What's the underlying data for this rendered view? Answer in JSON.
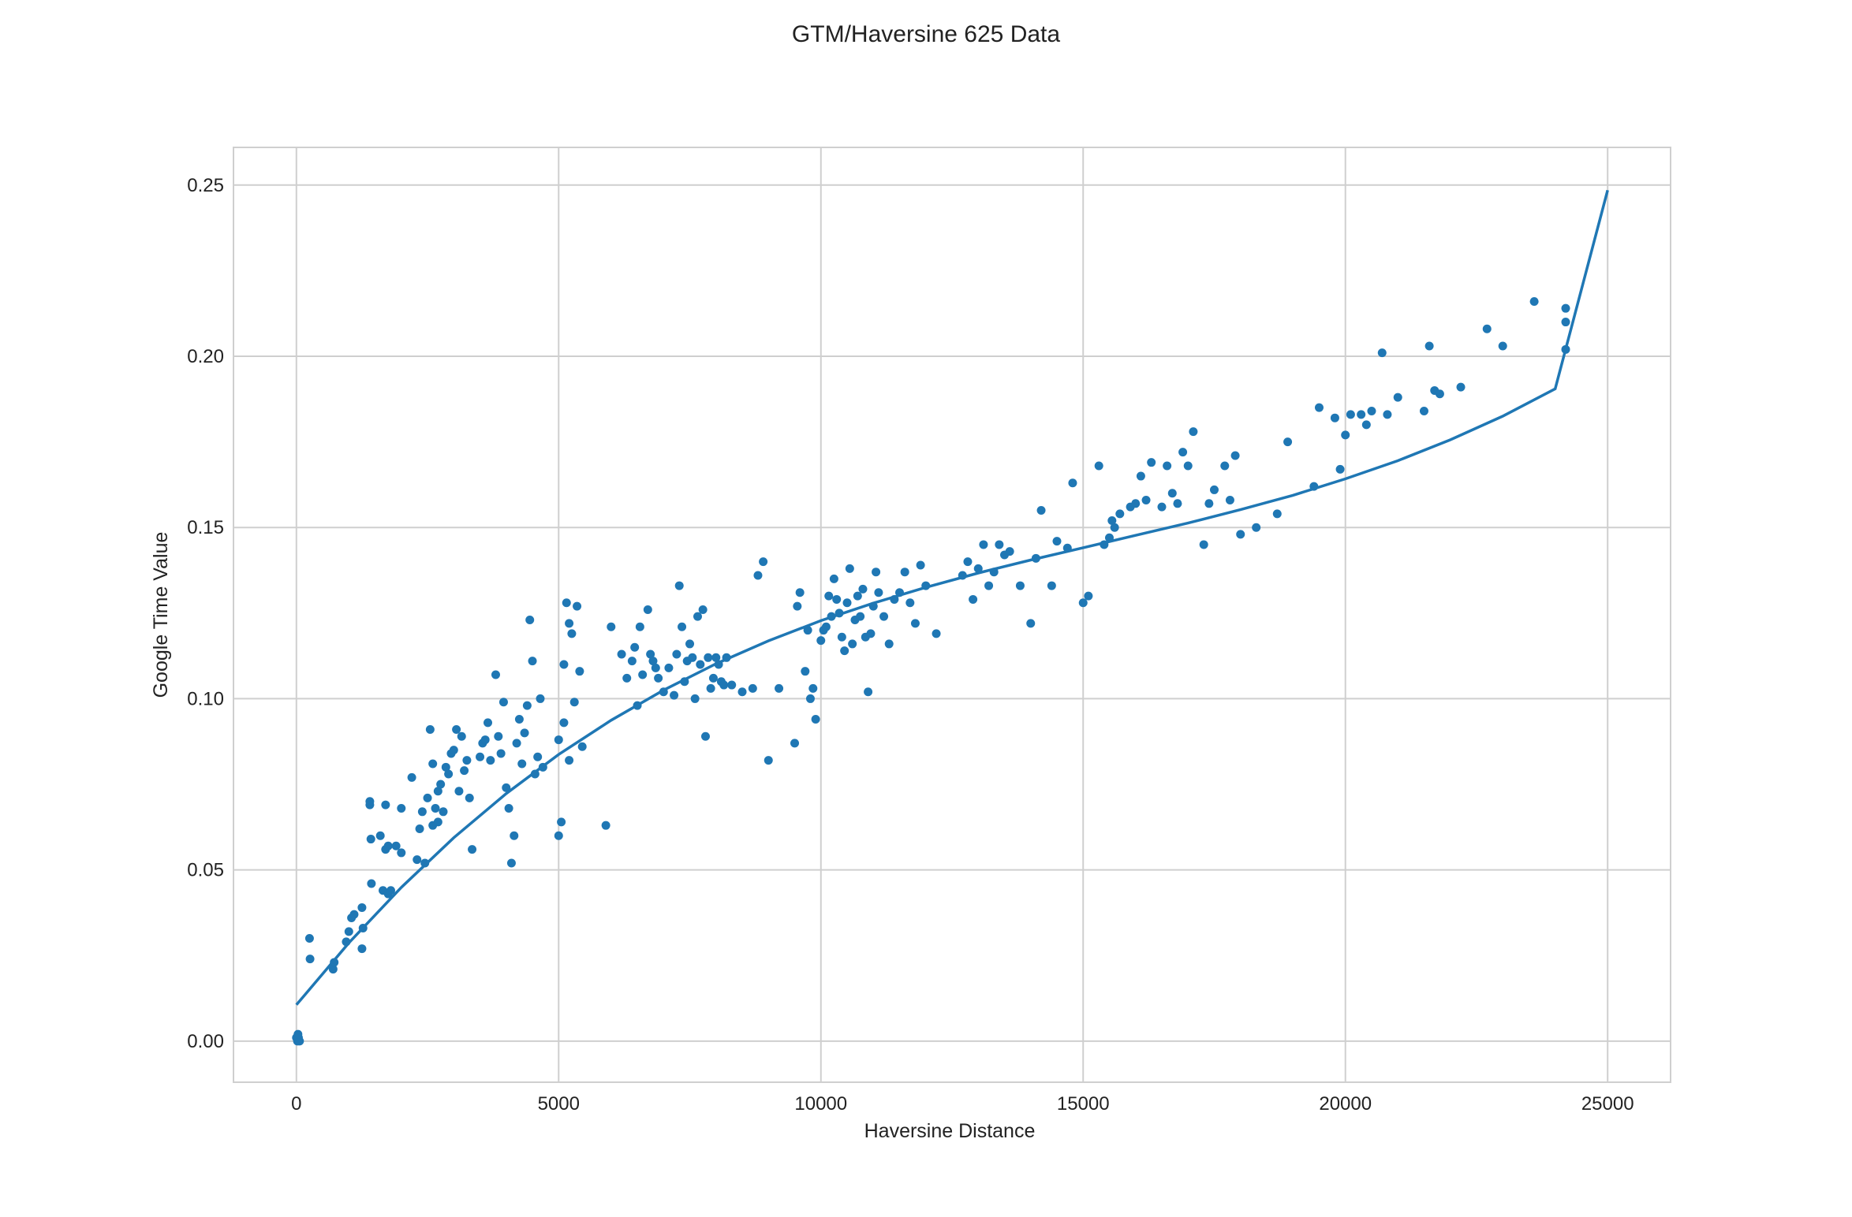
{
  "chart_data": {
    "type": "scatter",
    "title": "GTM/Haversine 625 Data",
    "xlabel": "Haversine Distance",
    "ylabel": "Google Time Value",
    "xlim": [
      -1200,
      26200
    ],
    "ylim": [
      -0.012,
      0.261
    ],
    "xticks": [
      0,
      5000,
      10000,
      15000,
      20000,
      25000
    ],
    "yticks": [
      0.0,
      0.05,
      0.1,
      0.15,
      0.2,
      0.25
    ],
    "xtick_labels": [
      "0",
      "5000",
      "10000",
      "15000",
      "20000",
      "25000"
    ],
    "ytick_labels": [
      "0.00",
      "0.05",
      "0.10",
      "0.15",
      "0.20",
      "0.25"
    ],
    "grid": true,
    "legend": "none",
    "colors": {
      "points": "#1f77b4",
      "fit_line": "#1f77b4",
      "grid": "#cfcfcf",
      "frame": "#cfcfcf"
    },
    "series": [
      {
        "kind": "points",
        "x": [
          0,
          20,
          40,
          60,
          30,
          250,
          260,
          700,
          720,
          950,
          1000,
          1050,
          1100,
          1250,
          1270,
          1250,
          1400,
          1420,
          1400,
          1430,
          1600,
          1650,
          1700,
          1700,
          1750,
          1750,
          1800,
          1900,
          2000,
          2000,
          2200,
          2300,
          2350,
          2400,
          2450,
          2500,
          2550,
          2600,
          2600,
          2650,
          2700,
          2700,
          2750,
          2800,
          2850,
          2900,
          2950,
          3000,
          3050,
          3100,
          3150,
          3200,
          3250,
          3300,
          3350,
          3500,
          3550,
          3600,
          3650,
          3700,
          3800,
          3850,
          3900,
          3950,
          4000,
          4050,
          4100,
          4150,
          4200,
          4250,
          4300,
          4350,
          4400,
          4450,
          4500,
          4550,
          4600,
          4650,
          4700,
          5000,
          5050,
          5100,
          5150,
          5200,
          5250,
          5300,
          5350,
          5400,
          5450,
          5000,
          5100,
          5200,
          5900,
          6000,
          6200,
          6300,
          6400,
          6450,
          6500,
          6550,
          6600,
          6700,
          6750,
          6800,
          6850,
          6900,
          7000,
          7100,
          7200,
          7250,
          7300,
          7350,
          7400,
          7450,
          7500,
          7550,
          7600,
          7650,
          7700,
          7750,
          7800,
          7850,
          7900,
          7950,
          8000,
          8050,
          8100,
          8150,
          8200,
          8300,
          8500,
          8700,
          8800,
          8900,
          9000,
          9200,
          9500,
          9550,
          9600,
          9700,
          9750,
          9800,
          9850,
          9900,
          10000,
          10050,
          10100,
          10150,
          10200,
          10250,
          10300,
          10350,
          10400,
          10450,
          10500,
          10550,
          10600,
          10650,
          10700,
          10750,
          10800,
          10850,
          10900,
          10950,
          11000,
          11050,
          11100,
          11200,
          11300,
          11400,
          11500,
          11600,
          11700,
          11800,
          11900,
          12000,
          12200,
          12700,
          12800,
          12900,
          13000,
          13100,
          13200,
          13300,
          13400,
          13500,
          13600,
          13800,
          14000,
          14100,
          14200,
          14400,
          14500,
          14700,
          14800,
          15000,
          15100,
          15300,
          15400,
          15500,
          15550,
          15600,
          15700,
          15900,
          16000,
          16100,
          16200,
          16300,
          16500,
          16600,
          16700,
          16800,
          16900,
          17000,
          17100,
          17300,
          17400,
          17500,
          17700,
          17800,
          17900,
          18000,
          18300,
          18700,
          18900,
          19400,
          19500,
          19800,
          19900,
          20000,
          20100,
          20300,
          20400,
          20500,
          20700,
          20800,
          21000,
          21500,
          21600,
          21700,
          21800,
          22200,
          22700,
          23000,
          23600,
          24200,
          24200,
          24200
        ],
        "y": [
          0.001,
          0.0,
          0.001,
          0.0,
          0.002,
          0.03,
          0.024,
          0.021,
          0.023,
          0.029,
          0.032,
          0.036,
          0.037,
          0.027,
          0.033,
          0.039,
          0.069,
          0.059,
          0.07,
          0.046,
          0.06,
          0.044,
          0.056,
          0.069,
          0.043,
          0.057,
          0.044,
          0.057,
          0.068,
          0.055,
          0.077,
          0.053,
          0.062,
          0.067,
          0.052,
          0.071,
          0.091,
          0.081,
          0.063,
          0.068,
          0.073,
          0.064,
          0.075,
          0.067,
          0.08,
          0.078,
          0.084,
          0.085,
          0.091,
          0.073,
          0.089,
          0.079,
          0.082,
          0.071,
          0.056,
          0.083,
          0.087,
          0.088,
          0.093,
          0.082,
          0.107,
          0.089,
          0.084,
          0.099,
          0.074,
          0.068,
          0.052,
          0.06,
          0.087,
          0.094,
          0.081,
          0.09,
          0.098,
          0.123,
          0.111,
          0.078,
          0.083,
          0.1,
          0.08,
          0.088,
          0.064,
          0.093,
          0.128,
          0.122,
          0.119,
          0.099,
          0.127,
          0.108,
          0.086,
          0.06,
          0.11,
          0.082,
          0.063,
          0.121,
          0.113,
          0.106,
          0.111,
          0.115,
          0.098,
          0.121,
          0.107,
          0.126,
          0.113,
          0.111,
          0.109,
          0.106,
          0.102,
          0.109,
          0.101,
          0.113,
          0.133,
          0.121,
          0.105,
          0.111,
          0.116,
          0.112,
          0.1,
          0.124,
          0.11,
          0.126,
          0.089,
          0.112,
          0.103,
          0.106,
          0.112,
          0.11,
          0.105,
          0.104,
          0.112,
          0.104,
          0.102,
          0.103,
          0.136,
          0.14,
          0.082,
          0.103,
          0.087,
          0.127,
          0.131,
          0.108,
          0.12,
          0.1,
          0.103,
          0.094,
          0.117,
          0.12,
          0.121,
          0.13,
          0.124,
          0.135,
          0.129,
          0.125,
          0.118,
          0.114,
          0.128,
          0.138,
          0.116,
          0.123,
          0.13,
          0.124,
          0.132,
          0.118,
          0.102,
          0.119,
          0.127,
          0.137,
          0.131,
          0.124,
          0.116,
          0.129,
          0.131,
          0.137,
          0.128,
          0.122,
          0.139,
          0.133,
          0.119,
          0.136,
          0.14,
          0.129,
          0.138,
          0.145,
          0.133,
          0.137,
          0.145,
          0.142,
          0.143,
          0.133,
          0.122,
          0.141,
          0.155,
          0.133,
          0.146,
          0.144,
          0.163,
          0.128,
          0.13,
          0.168,
          0.145,
          0.147,
          0.152,
          0.15,
          0.154,
          0.156,
          0.157,
          0.165,
          0.158,
          0.169,
          0.156,
          0.168,
          0.16,
          0.157,
          0.172,
          0.168,
          0.178,
          0.145,
          0.157,
          0.161,
          0.168,
          0.158,
          0.171,
          0.148,
          0.15,
          0.154,
          0.175,
          0.162,
          0.185,
          0.182,
          0.167,
          0.177,
          0.183,
          0.183,
          0.18,
          0.184,
          0.201,
          0.183,
          0.188,
          0.184,
          0.203,
          0.19,
          0.189,
          0.191,
          0.208,
          0.203,
          0.216,
          0.21,
          0.214,
          0.202
        ]
      },
      {
        "kind": "fit_line",
        "x": [
          0,
          1000,
          2000,
          3000,
          4000,
          5000,
          6000,
          7000,
          8000,
          9000,
          10000,
          11000,
          12000,
          13000,
          14000,
          15000,
          16000,
          17000,
          18000,
          19000,
          20000,
          21000,
          22000,
          23000,
          24000,
          25000
        ],
        "y": [
          0.0106,
          0.0287,
          0.0449,
          0.0594,
          0.0723,
          0.0837,
          0.0937,
          0.1025,
          0.1102,
          0.1169,
          0.1228,
          0.1279,
          0.1325,
          0.1367,
          0.1405,
          0.1441,
          0.1477,
          0.1513,
          0.1552,
          0.1594,
          0.1642,
          0.1695,
          0.1756,
          0.1825,
          0.1905,
          0.2485
        ]
      }
    ]
  }
}
